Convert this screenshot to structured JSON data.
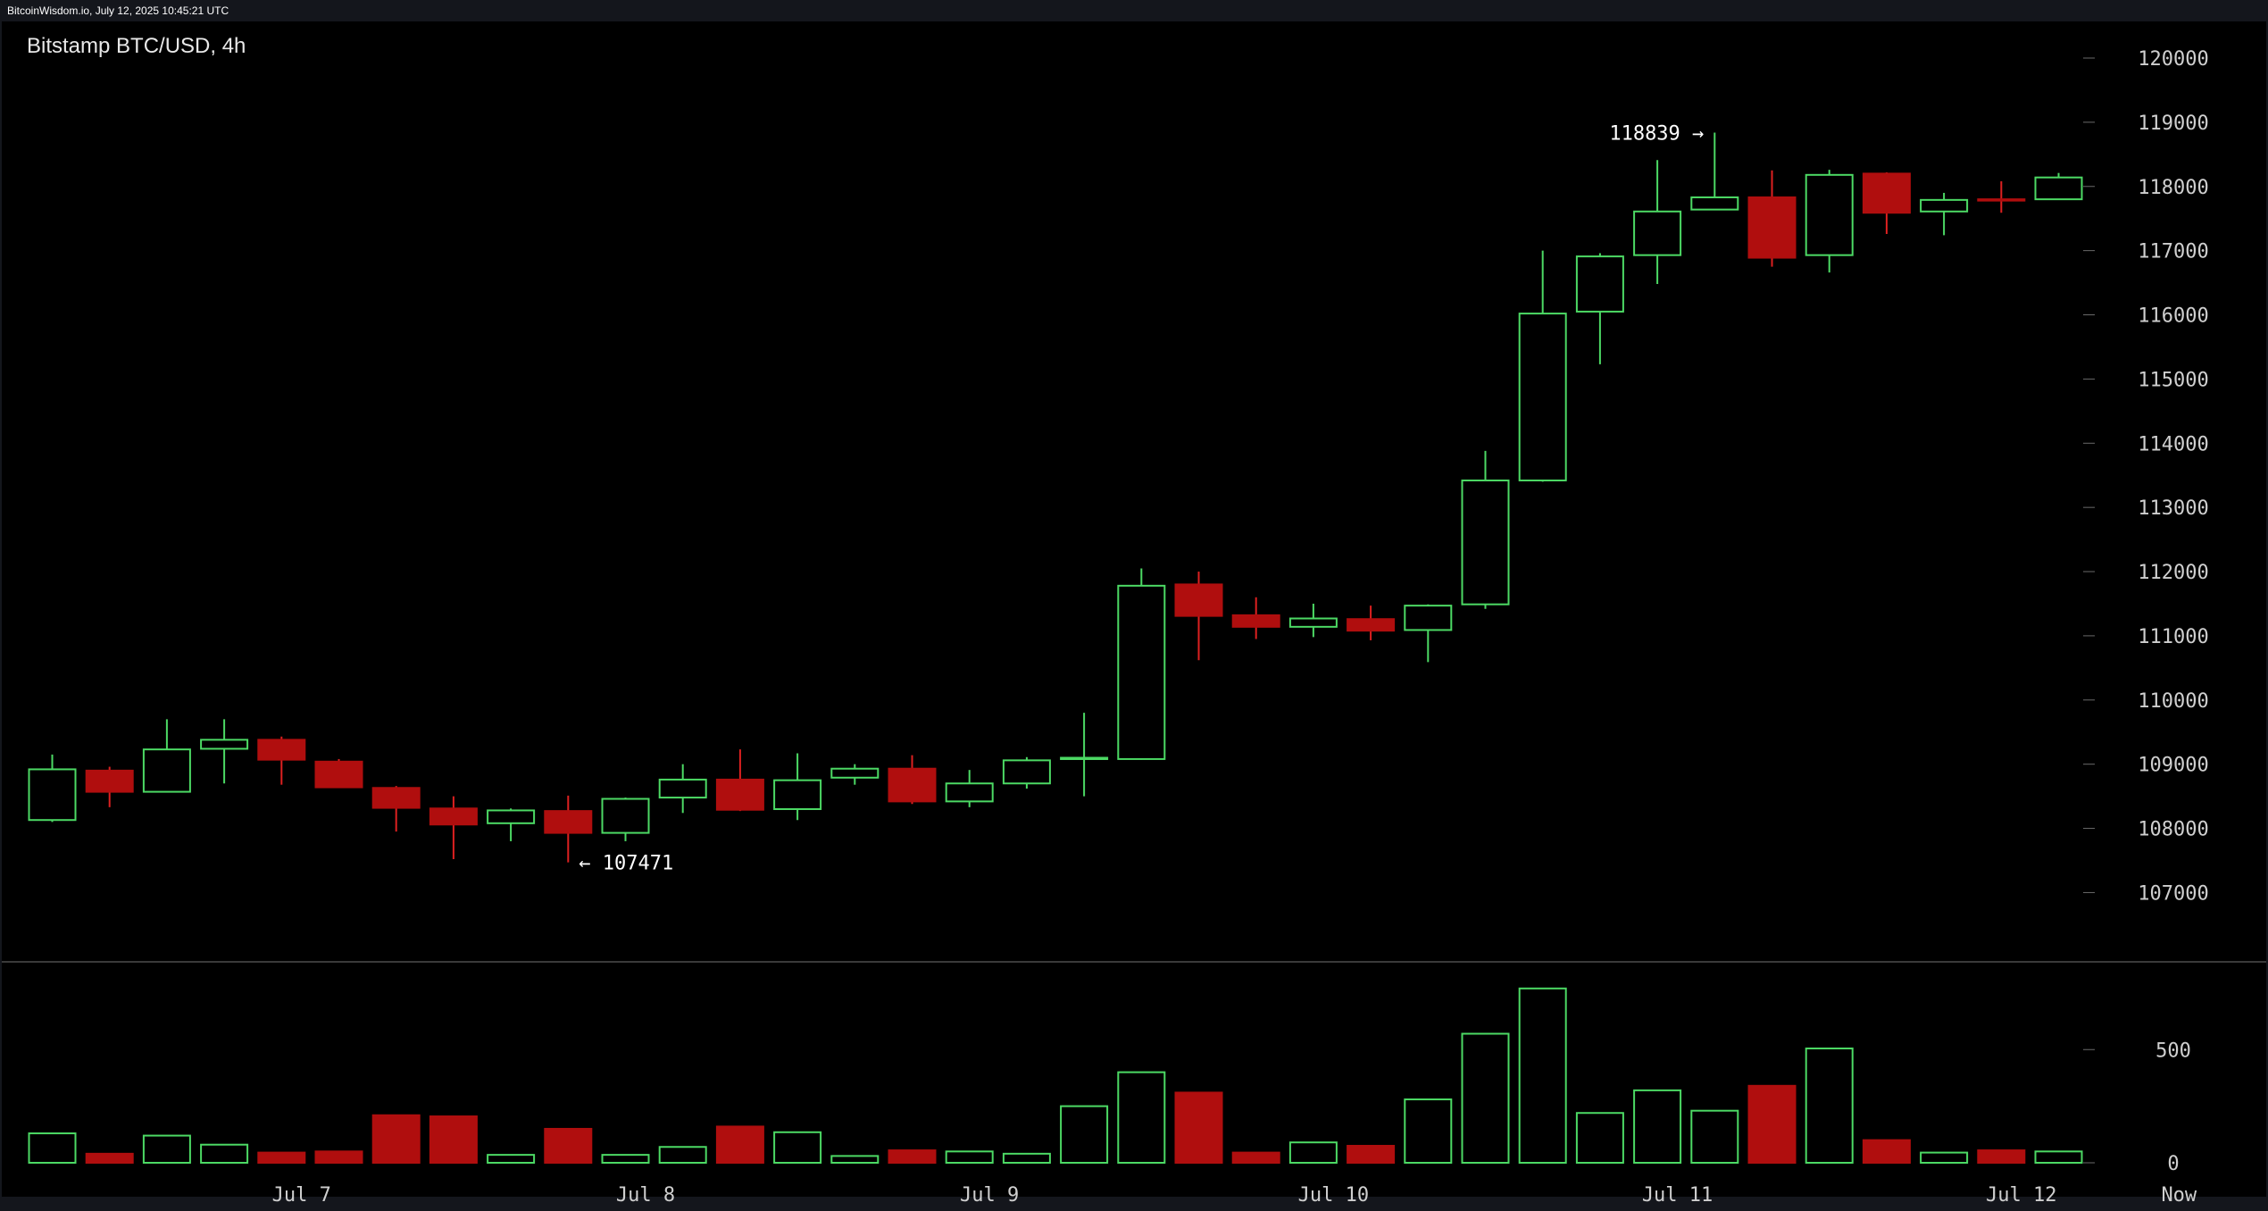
{
  "header": {
    "text": "BitcoinWisdom.io, July 12, 2025 10:45:21 UTC"
  },
  "colors": {
    "up": "#4cd964",
    "down": "#b00e0e",
    "down_wick": "#dd2020",
    "background": "#000000",
    "frame": "#14161c",
    "text": "#cfcfcf"
  },
  "chart_data": {
    "type": "candlestick",
    "title": "Bitstamp BTC/USD, 4h",
    "ylim": [
      106000,
      120600
    ],
    "y_ticks": [
      107000,
      108000,
      109000,
      110000,
      111000,
      112000,
      113000,
      114000,
      115000,
      116000,
      117000,
      118000,
      119000,
      120000
    ],
    "volume_ylim": [
      0,
      830
    ],
    "volume_ticks": [
      0,
      500
    ],
    "x_labels": [
      {
        "label": "Jul 7",
        "index": 4.35
      },
      {
        "label": "Jul 8",
        "index": 10.35
      },
      {
        "label": "Jul 9",
        "index": 16.35
      },
      {
        "label": "Jul 10",
        "index": 22.35
      },
      {
        "label": "Jul 11",
        "index": 28.35
      },
      {
        "label": "Jul 12",
        "index": 34.35
      },
      {
        "label": "Now",
        "index": 37.1
      }
    ],
    "candles": [
      {
        "o": 108130,
        "h": 109150,
        "l": 108100,
        "c": 108920,
        "v": 130
      },
      {
        "o": 108900,
        "h": 108960,
        "l": 108330,
        "c": 108570,
        "v": 40
      },
      {
        "o": 108570,
        "h": 109700,
        "l": 108570,
        "c": 109230,
        "v": 120
      },
      {
        "o": 109240,
        "h": 109700,
        "l": 108700,
        "c": 109380,
        "v": 80
      },
      {
        "o": 109380,
        "h": 109430,
        "l": 108680,
        "c": 109070,
        "v": 45
      },
      {
        "o": 109040,
        "h": 109080,
        "l": 108640,
        "c": 108640,
        "v": 50
      },
      {
        "o": 108630,
        "h": 108660,
        "l": 107950,
        "c": 108320,
        "v": 210
      },
      {
        "o": 108310,
        "h": 108500,
        "l": 107520,
        "c": 108060,
        "v": 205
      },
      {
        "o": 108080,
        "h": 108310,
        "l": 107800,
        "c": 108280,
        "v": 35
      },
      {
        "o": 108270,
        "h": 108510,
        "l": 107471,
        "c": 107930,
        "v": 150
      },
      {
        "o": 107930,
        "h": 108480,
        "l": 107800,
        "c": 108460,
        "v": 35
      },
      {
        "o": 108480,
        "h": 109000,
        "l": 108240,
        "c": 108760,
        "v": 70
      },
      {
        "o": 108760,
        "h": 109230,
        "l": 108270,
        "c": 108290,
        "v": 160
      },
      {
        "o": 108300,
        "h": 109170,
        "l": 108130,
        "c": 108750,
        "v": 135
      },
      {
        "o": 108790,
        "h": 109000,
        "l": 108680,
        "c": 108930,
        "v": 30
      },
      {
        "o": 108930,
        "h": 109140,
        "l": 108380,
        "c": 108420,
        "v": 55
      },
      {
        "o": 108420,
        "h": 108910,
        "l": 108330,
        "c": 108700,
        "v": 50
      },
      {
        "o": 108700,
        "h": 109110,
        "l": 108620,
        "c": 109060,
        "v": 40
      },
      {
        "o": 109080,
        "h": 109800,
        "l": 108500,
        "c": 109100,
        "v": 250
      },
      {
        "o": 109080,
        "h": 112050,
        "l": 109070,
        "c": 111780,
        "v": 400
      },
      {
        "o": 111800,
        "h": 112000,
        "l": 110620,
        "c": 111310,
        "v": 310
      },
      {
        "o": 111320,
        "h": 111600,
        "l": 110950,
        "c": 111140,
        "v": 45
      },
      {
        "o": 111140,
        "h": 111500,
        "l": 110980,
        "c": 111270,
        "v": 90
      },
      {
        "o": 111260,
        "h": 111470,
        "l": 110930,
        "c": 111080,
        "v": 75
      },
      {
        "o": 111090,
        "h": 111490,
        "l": 110590,
        "c": 111470,
        "v": 280
      },
      {
        "o": 111490,
        "h": 113880,
        "l": 111420,
        "c": 113420,
        "v": 570
      },
      {
        "o": 113420,
        "h": 117000,
        "l": 113400,
        "c": 116020,
        "v": 770
      },
      {
        "o": 116050,
        "h": 116960,
        "l": 115230,
        "c": 116910,
        "v": 220
      },
      {
        "o": 116930,
        "h": 118410,
        "l": 116480,
        "c": 117610,
        "v": 320
      },
      {
        "o": 117640,
        "h": 118839,
        "l": 117640,
        "c": 117830,
        "v": 230
      },
      {
        "o": 117830,
        "h": 118250,
        "l": 116750,
        "c": 116890,
        "v": 340
      },
      {
        "o": 116930,
        "h": 118260,
        "l": 116660,
        "c": 118180,
        "v": 505
      },
      {
        "o": 118200,
        "h": 118220,
        "l": 117260,
        "c": 117590,
        "v": 100
      },
      {
        "o": 117610,
        "h": 117900,
        "l": 117240,
        "c": 117790,
        "v": 45
      },
      {
        "o": 117800,
        "h": 118080,
        "l": 117590,
        "c": 117780,
        "v": 55
      },
      {
        "o": 117800,
        "h": 118210,
        "l": 117800,
        "c": 118140,
        "v": 50
      }
    ],
    "annotations": [
      {
        "text": "118839 →",
        "index": 29,
        "value": 118839,
        "side": "left"
      },
      {
        "text": "← 107471",
        "index": 9,
        "value": 107471,
        "side": "right"
      }
    ]
  }
}
